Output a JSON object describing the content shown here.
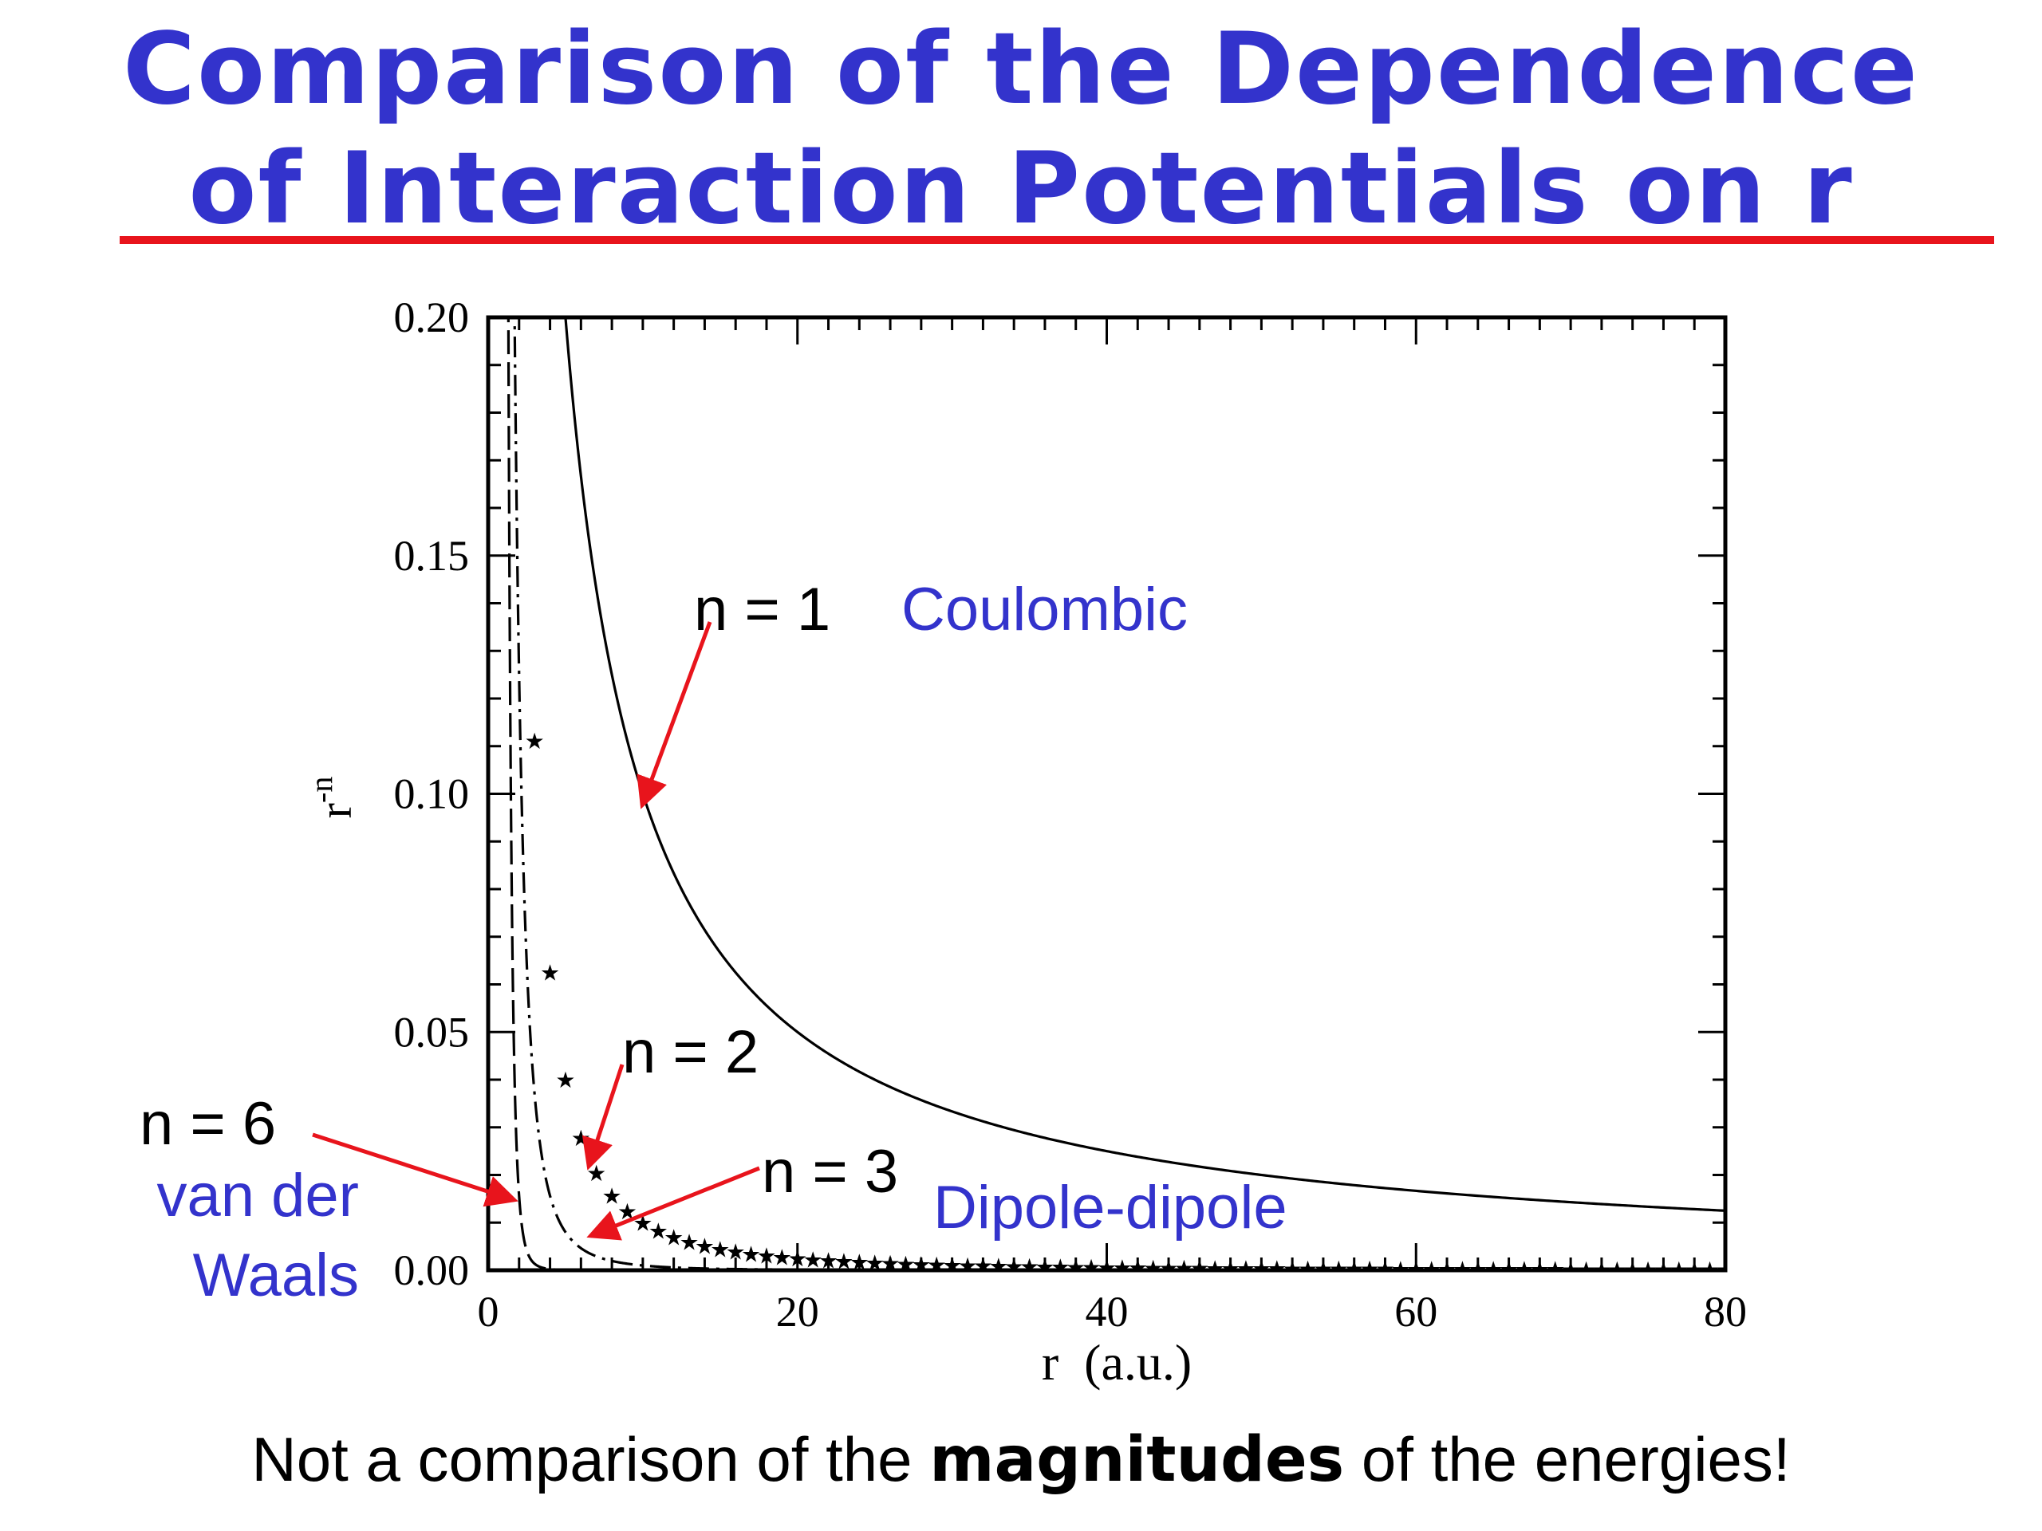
{
  "slide": {
    "title_line1": "Comparison of the Dependence",
    "title_line2": "of Interaction Potentials on r",
    "footer_pre": "Not a comparison of the ",
    "footer_bold": "magnitudes",
    "footer_post": " of the energies!"
  },
  "colors": {
    "title": "#3333cc",
    "rule": "#e8141c",
    "annotation_blue": "#3333cc",
    "arrow": "#e8141c",
    "curve": "#000000"
  },
  "annotations": {
    "n1": "n = 1",
    "n1_name": "Coulombic",
    "n2": "n = 2",
    "n3": "n = 3",
    "n3_name": "Dipole-dipole",
    "n6": "n = 6",
    "n6_name_line1": "van der",
    "n6_name_line2": "Waals"
  },
  "chart_data": {
    "type": "line",
    "xlabel": "r  (a.u.)",
    "ylabel": "r",
    "ylabel_sup": "-n",
    "xlim": [
      0,
      80
    ],
    "ylim": [
      0,
      0.2
    ],
    "x_ticks": [
      "0",
      "20",
      "40",
      "60",
      "80"
    ],
    "y_ticks": [
      "0.00",
      "0.05",
      "0.10",
      "0.15",
      "0.20"
    ],
    "grid": false,
    "series": [
      {
        "exponent": 1,
        "style": "solid"
      },
      {
        "exponent": 2,
        "style": "stars"
      },
      {
        "exponent": 3,
        "style": "dashdot"
      },
      {
        "exponent": 6,
        "style": "longdash"
      }
    ]
  }
}
